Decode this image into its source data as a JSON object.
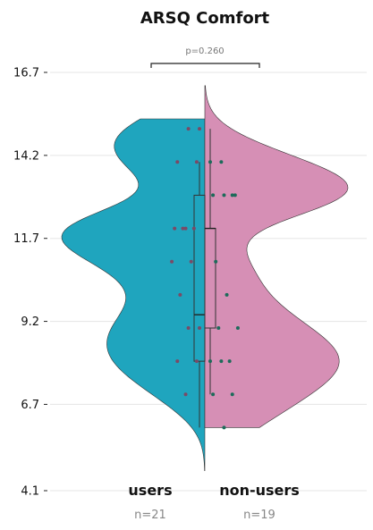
{
  "chart_data": {
    "type": "violin",
    "title": "ARSQ Comfort",
    "xlabel": "",
    "ylabel": "",
    "ylim": [
      4.1,
      16.7
    ],
    "yticks": [
      "4.1",
      "6.7",
      "9.2",
      "11.7",
      "14.2",
      "16.7"
    ],
    "grid": true,
    "categories": [
      "users",
      "non-users"
    ],
    "counts": [
      "n=21",
      "n=19"
    ],
    "colors": {
      "users": "#1fa5be",
      "non_users": "#d68fb5",
      "box": "#555555",
      "points_users": "#7a4a66",
      "points_non_users": "#1d6b5a"
    },
    "annotation": {
      "text": "p=0.260"
    },
    "groups": [
      {
        "name": "users",
        "side": "left",
        "violin_range": [
          4.7,
          15.3
        ],
        "box": {
          "whisker_low": 6.0,
          "q1": 8.0,
          "median": 9.4,
          "q3": 13.0,
          "whisker_high": 14.0
        },
        "points": [
          15.0,
          15.0,
          14.0,
          14.0,
          12.0,
          12.0,
          12.0,
          12.0,
          11.0,
          11.0,
          10.0,
          9.0,
          9.0,
          8.0,
          8.0,
          7.0
        ]
      },
      {
        "name": "non-users",
        "side": "right",
        "violin_range": [
          6.0,
          16.3
        ],
        "box": {
          "whisker_low": 7.0,
          "q1": 9.0,
          "median": 12.0,
          "q3": 12.0,
          "whisker_high": 15.0
        },
        "points": [
          14.0,
          14.0,
          13.0,
          13.0,
          13.0,
          13.0,
          11.0,
          10.0,
          9.0,
          9.0,
          8.0,
          8.0,
          8.0,
          7.0,
          7.0,
          6.0
        ]
      }
    ]
  }
}
